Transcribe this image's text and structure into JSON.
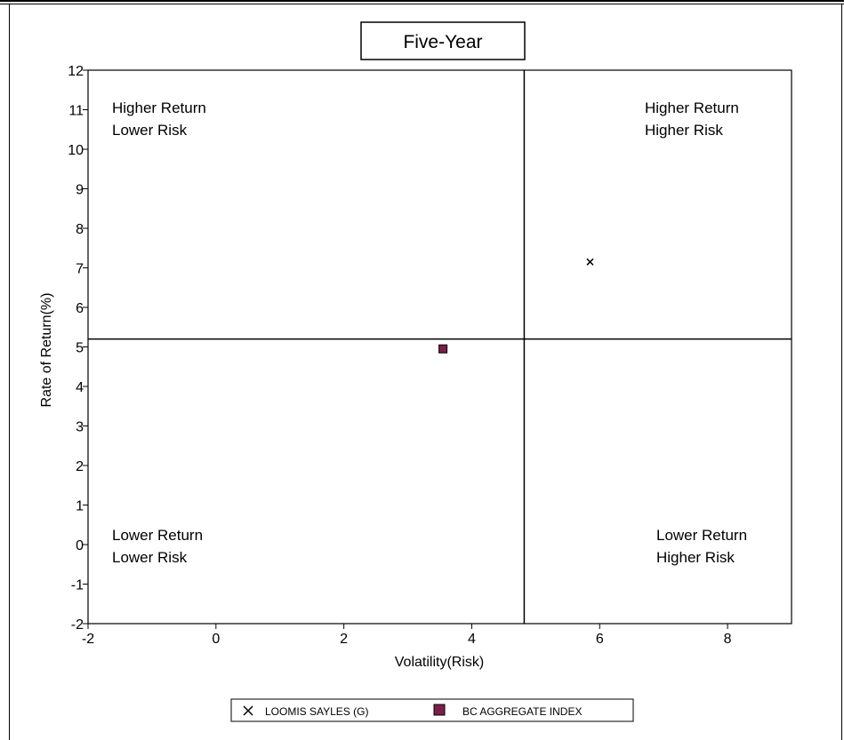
{
  "chart_data": {
    "type": "scatter",
    "title": "Five-Year",
    "xlabel": "Volatility(Risk)",
    "ylabel": "Rate of Return(%)",
    "xlim": [
      -2,
      9
    ],
    "ylim": [
      -2,
      12
    ],
    "xticks": [
      -2,
      0,
      2,
      4,
      6,
      8
    ],
    "yticks": [
      -2,
      -1,
      0,
      1,
      2,
      3,
      4,
      5,
      6,
      7,
      8,
      9,
      10,
      11,
      12
    ],
    "quadrant_dividers": {
      "x": 4.82,
      "y": 5.2
    },
    "quadrant_labels": {
      "top_left": [
        "Higher Return",
        "Lower Risk"
      ],
      "top_right": [
        "Higher Return",
        "Higher Risk"
      ],
      "bottom_left": [
        "Lower Return",
        "Lower Risk"
      ],
      "bottom_right": [
        "Lower Return",
        "Higher Risk"
      ]
    },
    "series": [
      {
        "name": "LOOMIS SAYLES  (G)",
        "marker": "x",
        "color": "#000000",
        "x": [
          5.85
        ],
        "y": [
          7.15
        ]
      },
      {
        "name": "BC AGGREGATE INDEX",
        "marker": "square",
        "color": "#7b1f4a",
        "x": [
          3.55
        ],
        "y": [
          4.95
        ]
      }
    ],
    "legend_position": "bottom",
    "grid": false
  }
}
